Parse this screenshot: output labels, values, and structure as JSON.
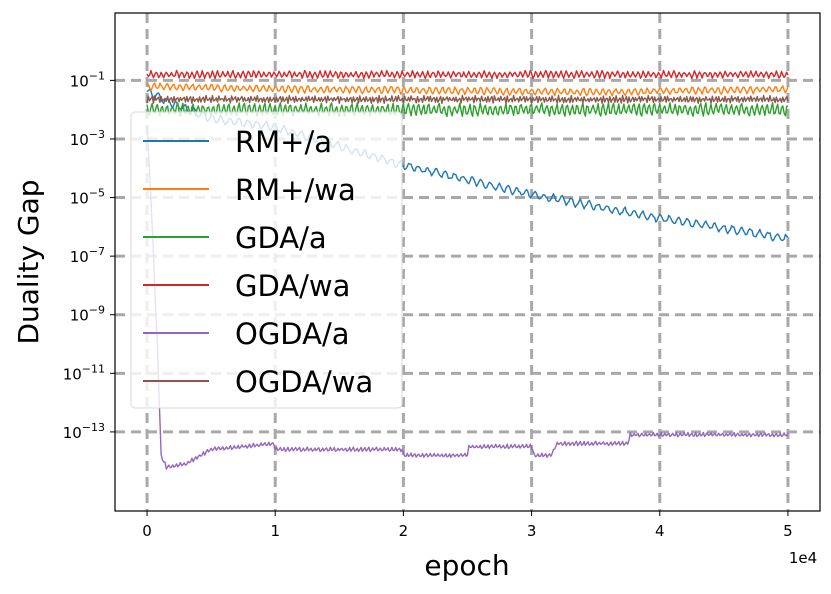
{
  "chart_data": {
    "type": "line",
    "title": "",
    "xlabel": "epoch",
    "ylabel": "Duality Gap",
    "x_offset_text": "1e4",
    "xlim": [
      -2500,
      52500
    ],
    "ylim_log10": [
      -15.7,
      1.3
    ],
    "yscale": "log",
    "grid": true,
    "legend_position": "upper-left",
    "x_ticks": [
      {
        "value": 0,
        "label": "0"
      },
      {
        "value": 10000,
        "label": "1"
      },
      {
        "value": 20000,
        "label": "2"
      },
      {
        "value": 30000,
        "label": "3"
      },
      {
        "value": 40000,
        "label": "4"
      },
      {
        "value": 50000,
        "label": "5"
      }
    ],
    "y_ticks": [
      {
        "exp": -1,
        "base": "10",
        "sup": "−1"
      },
      {
        "exp": -3,
        "base": "10",
        "sup": "−3"
      },
      {
        "exp": -5,
        "base": "10",
        "sup": "−5"
      },
      {
        "exp": -7,
        "base": "10",
        "sup": "−7"
      },
      {
        "exp": -9,
        "base": "10",
        "sup": "−9"
      },
      {
        "exp": -11,
        "base": "10",
        "sup": "−11"
      },
      {
        "exp": -13,
        "base": "10",
        "sup": "−13"
      }
    ],
    "series": [
      {
        "name": "RM+/a",
        "color": "#1f77b4",
        "trend": [
          [
            0,
            -1.4
          ],
          [
            2000,
            -1.8
          ],
          [
            5000,
            -2.3
          ],
          [
            10000,
            -2.6
          ],
          [
            20000,
            -3.9
          ],
          [
            30000,
            -4.9
          ],
          [
            40000,
            -5.7
          ],
          [
            50000,
            -6.4
          ]
        ],
        "noise_amp": 0.12,
        "noise_period": 700
      },
      {
        "name": "RM+/wa",
        "color": "#ff7f0e",
        "trend": [
          [
            0,
            -1.2
          ],
          [
            10000,
            -1.3
          ],
          [
            25000,
            -1.35
          ],
          [
            35000,
            -1.4
          ],
          [
            50000,
            -1.3
          ]
        ],
        "noise_amp": 0.1,
        "noise_period": 500
      },
      {
        "name": "GDA/a",
        "color": "#2ca02c",
        "trend": [
          [
            0,
            -2.0
          ],
          [
            50000,
            -2.0
          ]
        ],
        "noise_amp": 0.18,
        "noise_period": 400
      },
      {
        "name": "GDA/wa",
        "color": "#d62728",
        "trend": [
          [
            0,
            -0.8
          ],
          [
            50000,
            -0.8
          ]
        ],
        "noise_amp": 0.1,
        "noise_period": 400
      },
      {
        "name": "OGDA/a",
        "color": "#9467bd",
        "trend": [
          [
            0,
            -2.5
          ],
          [
            300,
            -5.0
          ],
          [
            800,
            -10.0
          ],
          [
            1100,
            -13.8
          ],
          [
            1500,
            -14.2
          ],
          [
            3000,
            -14.1
          ],
          [
            5000,
            -13.6
          ],
          [
            9900,
            -13.4
          ],
          [
            10000,
            -13.6
          ],
          [
            19900,
            -13.6
          ],
          [
            20000,
            -13.8
          ],
          [
            25000,
            -13.8
          ],
          [
            25100,
            -13.5
          ],
          [
            30000,
            -13.5
          ],
          [
            30200,
            -13.8
          ],
          [
            31500,
            -13.8
          ],
          [
            32000,
            -13.4
          ],
          [
            37500,
            -13.4
          ],
          [
            37700,
            -13.1
          ],
          [
            50000,
            -13.1
          ]
        ],
        "noise_amp": 0.06,
        "noise_period": 300
      },
      {
        "name": "OGDA/wa",
        "color": "#8c564b",
        "trend": [
          [
            0,
            -1.65
          ],
          [
            50000,
            -1.65
          ]
        ],
        "noise_amp": 0.1,
        "noise_period": 250
      }
    ]
  }
}
